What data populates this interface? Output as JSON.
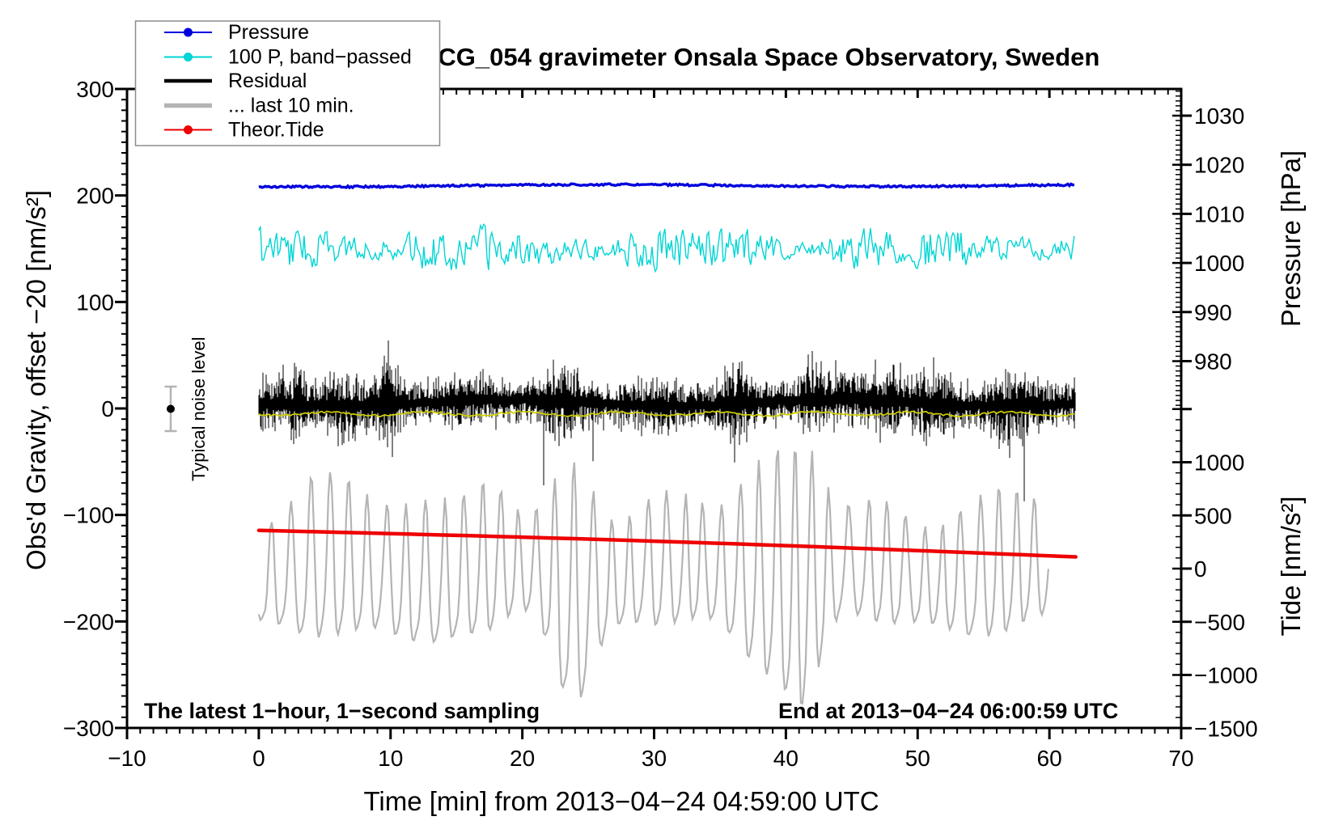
{
  "title": "SCG_054 gravimeter Onsala Space Observatory, Sweden",
  "legend": {
    "entries": [
      {
        "label": "Pressure",
        "color": "#0000dd",
        "marker": "line-dot"
      },
      {
        "label": "100 P, band−passed",
        "color": "#00d5d5",
        "marker": "line-dot"
      },
      {
        "label": "Residual",
        "color": "#000000",
        "marker": "thick-line"
      },
      {
        "label": "... last 10 min.",
        "color": "#b4b4b4",
        "marker": "thick-line"
      },
      {
        "label": "Theor.Tide",
        "color": "#ee0000",
        "marker": "line-dot"
      }
    ]
  },
  "annotations": {
    "noise_label": "Typical noise level",
    "sampling_note": "The latest 1−hour, 1−second sampling",
    "end_note": "End at 2013−04−24 06:00:59 UTC"
  },
  "chart_data": {
    "type": "line",
    "title": "SCG_054 gravimeter Onsala Space Observatory, Sweden",
    "xlabel": "Time [min] from 2013−04−24 04:59:00 UTC",
    "x_range_min": [
      -10,
      70
    ],
    "x_major_tick_step": 10,
    "x_minor_tick_step": 1,
    "data_span_min": [
      0,
      62
    ],
    "grid": false,
    "legend_position": "top-left",
    "left_axis": {
      "label": "Obs'd Gravity, offset −20 [nm/s²]",
      "range": [
        -300,
        300
      ],
      "labeled_ticks": [
        300,
        200,
        100,
        0,
        -100,
        -200,
        -300
      ],
      "minor_tick_step": 10
    },
    "right_axis_pressure": {
      "label": "Pressure [hPa]",
      "labeled_ticks": [
        1030,
        1020,
        1010,
        1000,
        990,
        980
      ],
      "minor_tick_step": 1,
      "visible_range": [
        971,
        1035
      ]
    },
    "right_axis_tide": {
      "label": "Tide [nm/s²]",
      "labeled_ticks": [
        1000,
        500,
        0,
        -500,
        -1000,
        -1500
      ],
      "minor_tick_step": 100,
      "visible_range": [
        -1500,
        1500
      ]
    },
    "series": [
      {
        "name": "Pressure",
        "color": "#0000dd",
        "axis": "pressure",
        "unit": "hPa",
        "approx_mean_hPa": 1015.5,
        "noise_hPa": 0.4,
        "t_start": 0,
        "t_end": 62,
        "position_on_gravity_scale": 209
      },
      {
        "name": "100 P, band−passed",
        "color": "#00d5d5",
        "axis": "gravity",
        "center": 150,
        "typ_amplitude": 13,
        "max_amplitude": 30,
        "t_start": 0,
        "t_end": 62
      },
      {
        "name": "Residual",
        "color": "#000000",
        "axis": "gravity",
        "mean": 3,
        "typ_std": 40,
        "excursion_min": -120,
        "excursion_max": 130,
        "sampling": "1-second",
        "t_start": 0,
        "t_end": 62,
        "burst_times_min": [
          3,
          9.7,
          23,
          36,
          42,
          47.5,
          52,
          57
        ]
      },
      {
        "name": "Residual smoothed (yellow)",
        "color": "#d0d000",
        "axis": "gravity",
        "center": -5,
        "amplitude": 3,
        "t_start": 0,
        "t_end": 62
      },
      {
        "name": "... last 10 min.",
        "color": "#b4b4b4",
        "axis": "tide",
        "center": -90,
        "typ_amplitude": 350,
        "max_amplitude": 1150,
        "deep_excursion_times_min": [
          23.8,
          41.3
        ],
        "t_start": 0,
        "t_end": 60
      },
      {
        "name": "Theor.Tide",
        "color": "#ee0000",
        "axis": "tide",
        "start_value": 360,
        "end_value": 110,
        "shape": "nearly-linear decline",
        "t_start": 0,
        "t_end": 62
      }
    ],
    "noise_marker": {
      "t_min": -6.7,
      "value": 0,
      "half_range": 21
    }
  }
}
